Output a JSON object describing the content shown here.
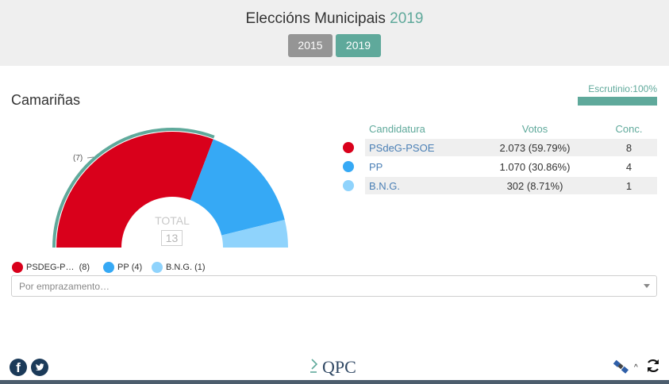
{
  "header": {
    "title": "Eleccións Municipais",
    "title_year": "2019",
    "years": [
      "2015",
      "2019"
    ],
    "active_year": "2019"
  },
  "place": "Camariñas",
  "scrutiny": {
    "label": "Escrutinio:100%",
    "percent": 100
  },
  "table": {
    "headers": {
      "candidate": "Candidatura",
      "votes": "Votos",
      "seats": "Conc."
    },
    "rows": [
      {
        "candidate": "PSdeG-PSOE",
        "votes": "2.073 (59.79%)",
        "seats": "8",
        "color": "#d9001b"
      },
      {
        "candidate": "PP",
        "votes": "1.070 (30.86%)",
        "seats": "4",
        "color": "#36a9f5"
      },
      {
        "candidate": "B.N.G.",
        "votes": "302 (8.71%)",
        "seats": "1",
        "color": "#8fd3fc"
      }
    ]
  },
  "chart_data": {
    "type": "pie",
    "subtype": "half-donut (parliament)",
    "total_label": "TOTAL",
    "total": 13,
    "majority_label": "(7)",
    "categories": [
      "PSDEG-P…",
      "PP",
      "B.N.G."
    ],
    "values": [
      8,
      4,
      1
    ],
    "colors": [
      "#d9001b",
      "#36a9f5",
      "#8fd3fc"
    ],
    "majority_arc_color": "#5fa99b",
    "legend": [
      {
        "label": "PSDEG-P…",
        "count": "(8)"
      },
      {
        "label": "PP",
        "count": "(4)"
      },
      {
        "label": "B.N.G.",
        "count": "(1)"
      }
    ]
  },
  "select": {
    "placeholder": "Por emprazamento…"
  },
  "footer": {
    "logo_text": "QPC",
    "facebook_glyph": "f",
    "icons": [
      "facebook-icon",
      "twitter-icon",
      "satellite-icon",
      "caret-up-icon",
      "refresh-icon"
    ],
    "caret_glyph": "^"
  }
}
